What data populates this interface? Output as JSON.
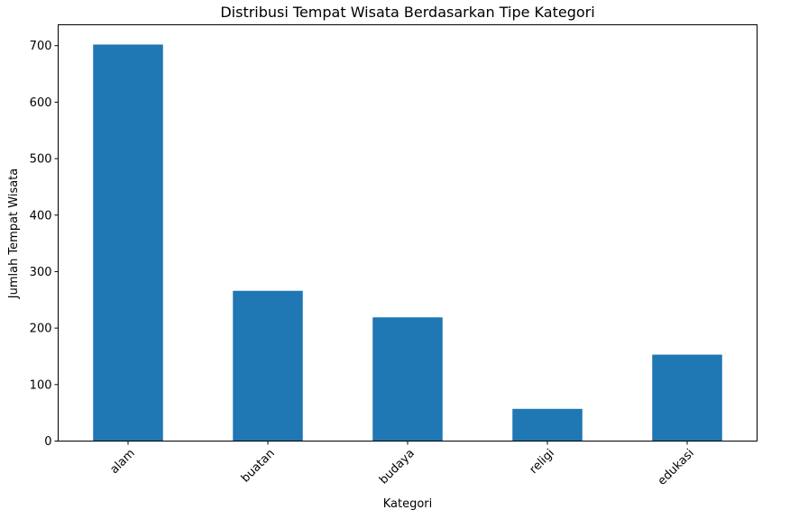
{
  "chart_data": {
    "type": "bar",
    "title": "Distribusi Tempat Wisata Berdasarkan Tipe Kategori",
    "xlabel": "Kategori",
    "ylabel": "Jumlah Tempat Wisata",
    "categories": [
      "alam",
      "buatan",
      "budaya",
      "religi",
      "edukasi"
    ],
    "values": [
      702,
      266,
      219,
      57,
      153
    ],
    "ylim": [
      0,
      737
    ],
    "yticks": [
      0,
      100,
      200,
      300,
      400,
      500,
      600,
      700
    ],
    "bar_color": "#1f77b4",
    "grid": false,
    "legend": "none",
    "xtick_rotation": 45
  }
}
